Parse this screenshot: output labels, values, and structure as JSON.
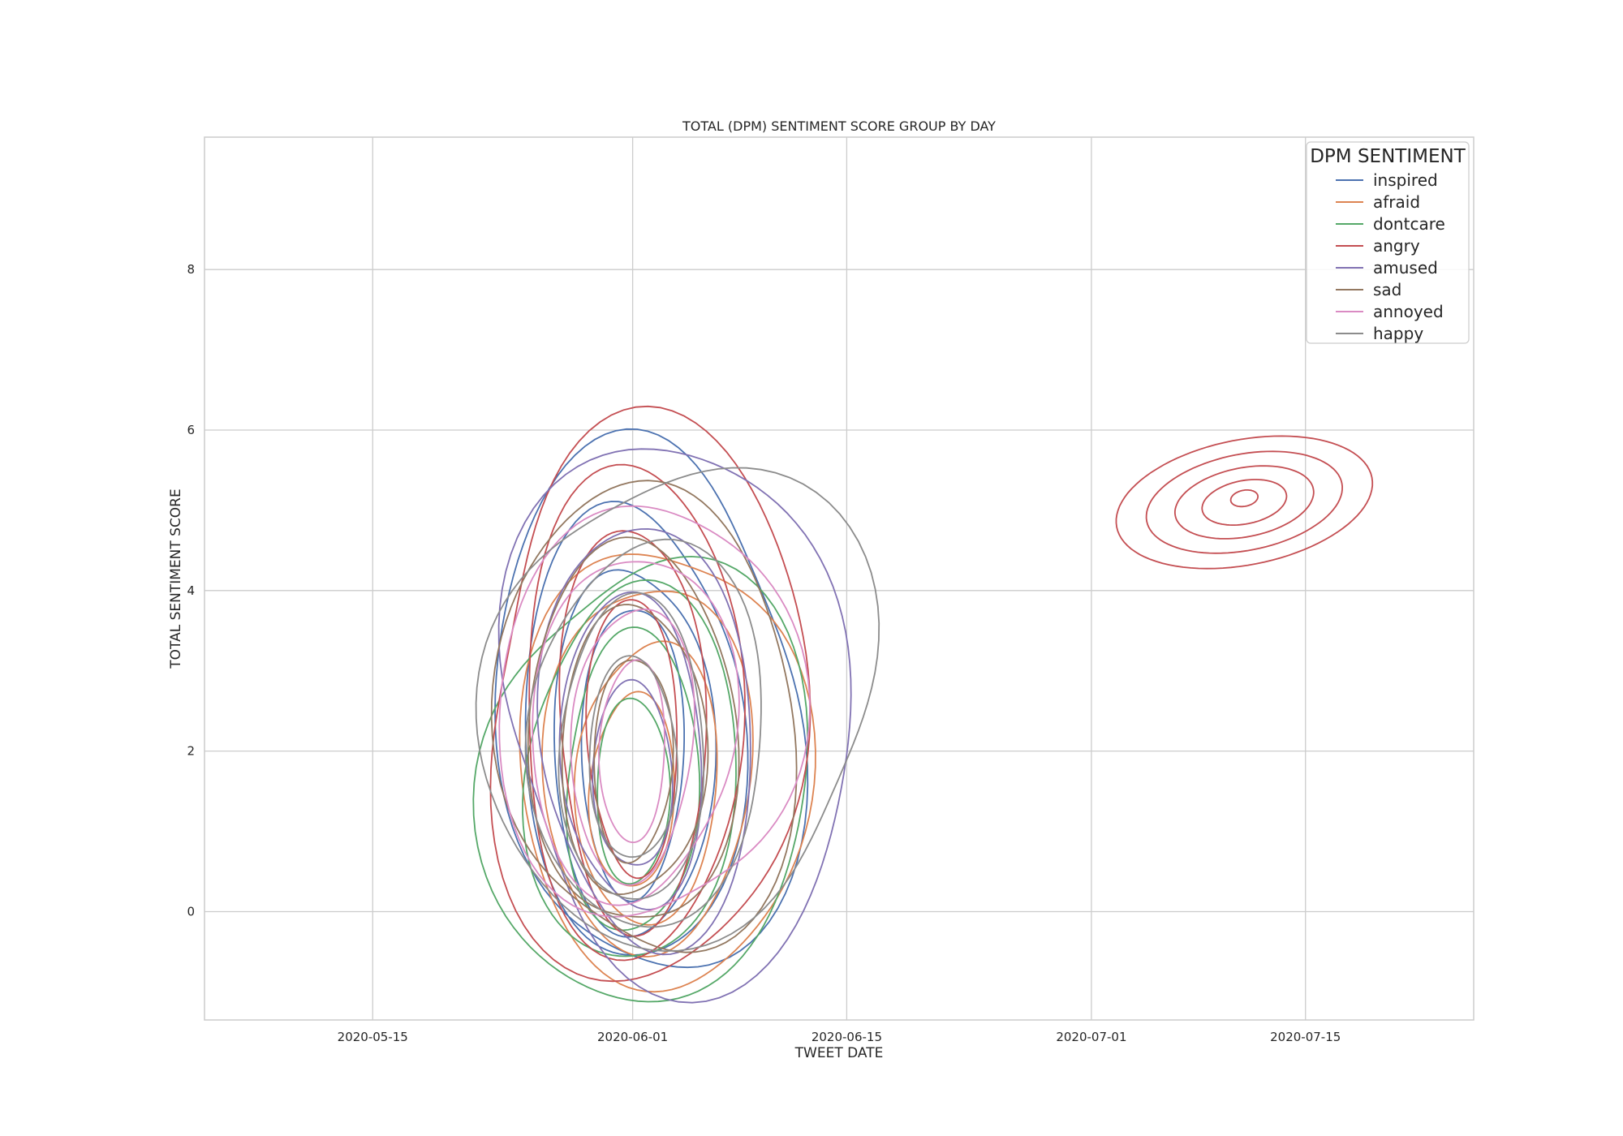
{
  "chart_data": {
    "type": "kde-contour",
    "title": "TOTAL (DPM) SENTIMENT SCORE GROUP BY DAY",
    "xlabel": "TWEET DATE",
    "ylabel": "TOTAL SENTIMENT SCORE",
    "x_ticks": [
      "2020-05-15",
      "2020-06-01",
      "2020-06-15",
      "2020-07-01",
      "2020-07-15"
    ],
    "y_ticks": [
      "0",
      "2",
      "4",
      "6",
      "8"
    ],
    "xlim": [
      "2020-05-04",
      "2020-07-26"
    ],
    "ylim": [
      -1.35,
      9.65
    ],
    "grid": true,
    "legend": {
      "title": "DPM SENTIMENT",
      "placement": "top-right"
    },
    "series": [
      {
        "name": "inspired",
        "color": "#4c72b0",
        "contours": [
          {
            "center": [
              "2020-06-02",
              2.5
            ],
            "rx_days": 10,
            "ry": 3.3,
            "rot": 0,
            "blob": 0.14
          },
          {
            "center": [
              "2020-06-01",
              2.2
            ],
            "rx_days": 7,
            "ry": 2.9,
            "rot": 0,
            "blob": 0.1
          },
          {
            "center": [
              "2020-06-01",
              2.0
            ],
            "rx_days": 5,
            "ry": 2.4,
            "rot": 0,
            "blob": 0.1
          },
          {
            "center": [
              "2020-06-01",
              2.0
            ],
            "rx_days": 3.2,
            "ry": 1.9,
            "rot": 0,
            "blob": 0.08
          }
        ]
      },
      {
        "name": "afraid",
        "color": "#dd8452",
        "contours": [
          {
            "center": [
              "2020-06-03",
              1.8
            ],
            "rx_days": 9,
            "ry": 2.9,
            "rot": 0,
            "blob": 0.12
          },
          {
            "center": [
              "2020-06-02",
              1.8
            ],
            "rx_days": 6.5,
            "ry": 2.4,
            "rot": 0,
            "blob": 0.1
          },
          {
            "center": [
              "2020-06-02",
              1.6
            ],
            "rx_days": 4.5,
            "ry": 1.8,
            "rot": 0,
            "blob": 0.1
          },
          {
            "center": [
              "2020-06-01",
              1.5
            ],
            "rx_days": 2.8,
            "ry": 1.2,
            "rot": 0,
            "blob": 0.08
          }
        ]
      },
      {
        "name": "dontcare",
        "color": "#55a868",
        "contours": [
          {
            "center": [
              "2020-06-02",
              1.6
            ],
            "rx_days": 10.5,
            "ry": 2.8,
            "rot": 0,
            "blob": 0.13
          },
          {
            "center": [
              "2020-06-01",
              1.7
            ],
            "rx_days": 7,
            "ry": 2.3,
            "rot": 0,
            "blob": 0.1
          },
          {
            "center": [
              "2020-06-01",
              1.6
            ],
            "rx_days": 4.5,
            "ry": 1.8,
            "rot": 0,
            "blob": 0.1
          },
          {
            "center": [
              "2020-06-01",
              1.5
            ],
            "rx_days": 2.5,
            "ry": 1.1,
            "rot": 0,
            "blob": 0.08
          }
        ]
      },
      {
        "name": "angry",
        "color": "#c44e52",
        "contours": [
          {
            "center": [
              "2020-06-02",
              2.6
            ],
            "rx_days": 11,
            "ry": 3.3,
            "rot": 0,
            "blob": 0.15
          },
          {
            "center": [
              "2020-06-01",
              2.5
            ],
            "rx_days": 7.5,
            "ry": 2.9,
            "rot": 0,
            "blob": 0.1
          },
          {
            "center": [
              "2020-06-01",
              2.3
            ],
            "rx_days": 5,
            "ry": 2.4,
            "rot": 0,
            "blob": 0.1
          },
          {
            "center": [
              "2020-06-01",
              2.2
            ],
            "rx_days": 3,
            "ry": 1.7,
            "rot": 0,
            "blob": 0.08
          },
          {
            "center": [
              "2020-07-11",
              5.1
            ],
            "rx_days": 8.5,
            "ry": 0.78,
            "rot": -11,
            "blob": 0
          },
          {
            "center": [
              "2020-07-11",
              5.1
            ],
            "rx_days": 6.5,
            "ry": 0.6,
            "rot": -11,
            "blob": 0
          },
          {
            "center": [
              "2020-07-11",
              5.1
            ],
            "rx_days": 4.6,
            "ry": 0.43,
            "rot": -11,
            "blob": 0
          },
          {
            "center": [
              "2020-07-11",
              5.1
            ],
            "rx_days": 2.8,
            "ry": 0.27,
            "rot": -11,
            "blob": 0
          },
          {
            "center": [
              "2020-07-11",
              5.15
            ],
            "rx_days": 0.9,
            "ry": 0.1,
            "rot": -11,
            "blob": 0
          }
        ]
      },
      {
        "name": "amused",
        "color": "#8172b3",
        "contours": [
          {
            "center": [
              "2020-06-04",
              2.5
            ],
            "rx_days": 12,
            "ry": 3.2,
            "rot": 0,
            "blob": 0.16
          },
          {
            "center": [
              "2020-06-02",
              2.2
            ],
            "rx_days": 7,
            "ry": 2.6,
            "rot": 0,
            "blob": 0.1
          },
          {
            "center": [
              "2020-06-01",
              2.0
            ],
            "rx_days": 4.5,
            "ry": 2.0,
            "rot": 0,
            "blob": 0.1
          },
          {
            "center": [
              "2020-06-01",
              1.7
            ],
            "rx_days": 2.5,
            "ry": 1.2,
            "rot": 0,
            "blob": 0.08
          }
        ]
      },
      {
        "name": "sad",
        "color": "#937860",
        "contours": [
          {
            "center": [
              "2020-06-02",
              2.4
            ],
            "rx_days": 9.5,
            "ry": 3.0,
            "rot": 0,
            "blob": 0.12
          },
          {
            "center": [
              "2020-06-01",
              2.2
            ],
            "rx_days": 6.5,
            "ry": 2.5,
            "rot": 0,
            "blob": 0.1
          },
          {
            "center": [
              "2020-06-01",
              2.0
            ],
            "rx_days": 4.5,
            "ry": 1.9,
            "rot": 0,
            "blob": 0.1
          },
          {
            "center": [
              "2020-06-01",
              1.9
            ],
            "rx_days": 2.5,
            "ry": 1.3,
            "rot": 0,
            "blob": 0.08
          }
        ]
      },
      {
        "name": "annoyed",
        "color": "#da8bc3",
        "contours": [
          {
            "center": [
              "2020-06-02",
              2.5
            ],
            "rx_days": 9.5,
            "ry": 2.7,
            "rot": 0,
            "blob": 0.12
          },
          {
            "center": [
              "2020-06-01",
              2.3
            ],
            "rx_days": 6.5,
            "ry": 2.2,
            "rot": 0,
            "blob": 0.1
          },
          {
            "center": [
              "2020-06-01",
              2.1
            ],
            "rx_days": 4,
            "ry": 1.7,
            "rot": 0,
            "blob": 0.1
          },
          {
            "center": [
              "2020-06-01",
              2.0
            ],
            "rx_days": 2.2,
            "ry": 1.1,
            "rot": 0,
            "blob": 0.08
          }
        ]
      },
      {
        "name": "happy",
        "color": "#8c8c8c",
        "contours": [
          {
            "center": [
              "2020-06-04",
              2.6
            ],
            "rx_days": 13,
            "ry": 2.9,
            "rot": 0,
            "blob": 0.15
          },
          {
            "center": [
              "2020-06-02",
              2.2
            ],
            "rx_days": 8,
            "ry": 2.3,
            "rot": 0,
            "blob": 0.1
          },
          {
            "center": [
              "2020-06-01",
              2.0
            ],
            "rx_days": 5,
            "ry": 1.8,
            "rot": 0,
            "blob": 0.1
          },
          {
            "center": [
              "2020-06-01",
              1.9
            ],
            "rx_days": 3,
            "ry": 1.2,
            "rot": 0,
            "blob": 0.08
          }
        ]
      }
    ]
  }
}
